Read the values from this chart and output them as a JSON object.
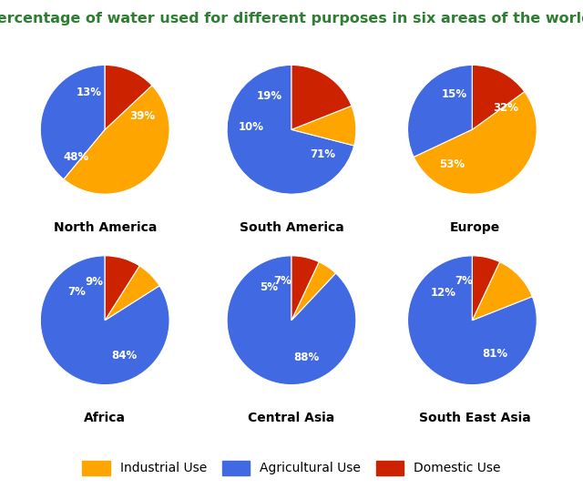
{
  "title": "Percentage of water used for different purposes in six areas of the world.",
  "title_color": "#2e7d32",
  "title_fontsize": 11.5,
  "background_color": "#ffffff",
  "regions": [
    {
      "name": "North America",
      "values": [
        39,
        48,
        13
      ],
      "startangle": 90
    },
    {
      "name": "South America",
      "values": [
        71,
        10,
        19
      ],
      "startangle": 90
    },
    {
      "name": "Europe",
      "values": [
        32,
        53,
        15
      ],
      "startangle": 90
    },
    {
      "name": "Africa",
      "values": [
        84,
        7,
        9
      ],
      "startangle": 90
    },
    {
      "name": "Central Asia",
      "values": [
        88,
        5,
        7
      ],
      "startangle": 90
    },
    {
      "name": "South East Asia",
      "values": [
        81,
        12,
        7
      ],
      "startangle": 90
    }
  ],
  "colors": [
    "#4169E1",
    "#FFA500",
    "#CC2200"
  ],
  "label_fontsize": 8.5,
  "label_color": "#ffffff",
  "region_label_fontsize": 10,
  "region_label_color": "#000000",
  "legend_labels": [
    "Industrial Use",
    "Agricultural Use",
    "Domestic Use"
  ],
  "legend_colors": [
    "#FFA500",
    "#4169E1",
    "#CC2200"
  ],
  "legend_fontsize": 10
}
